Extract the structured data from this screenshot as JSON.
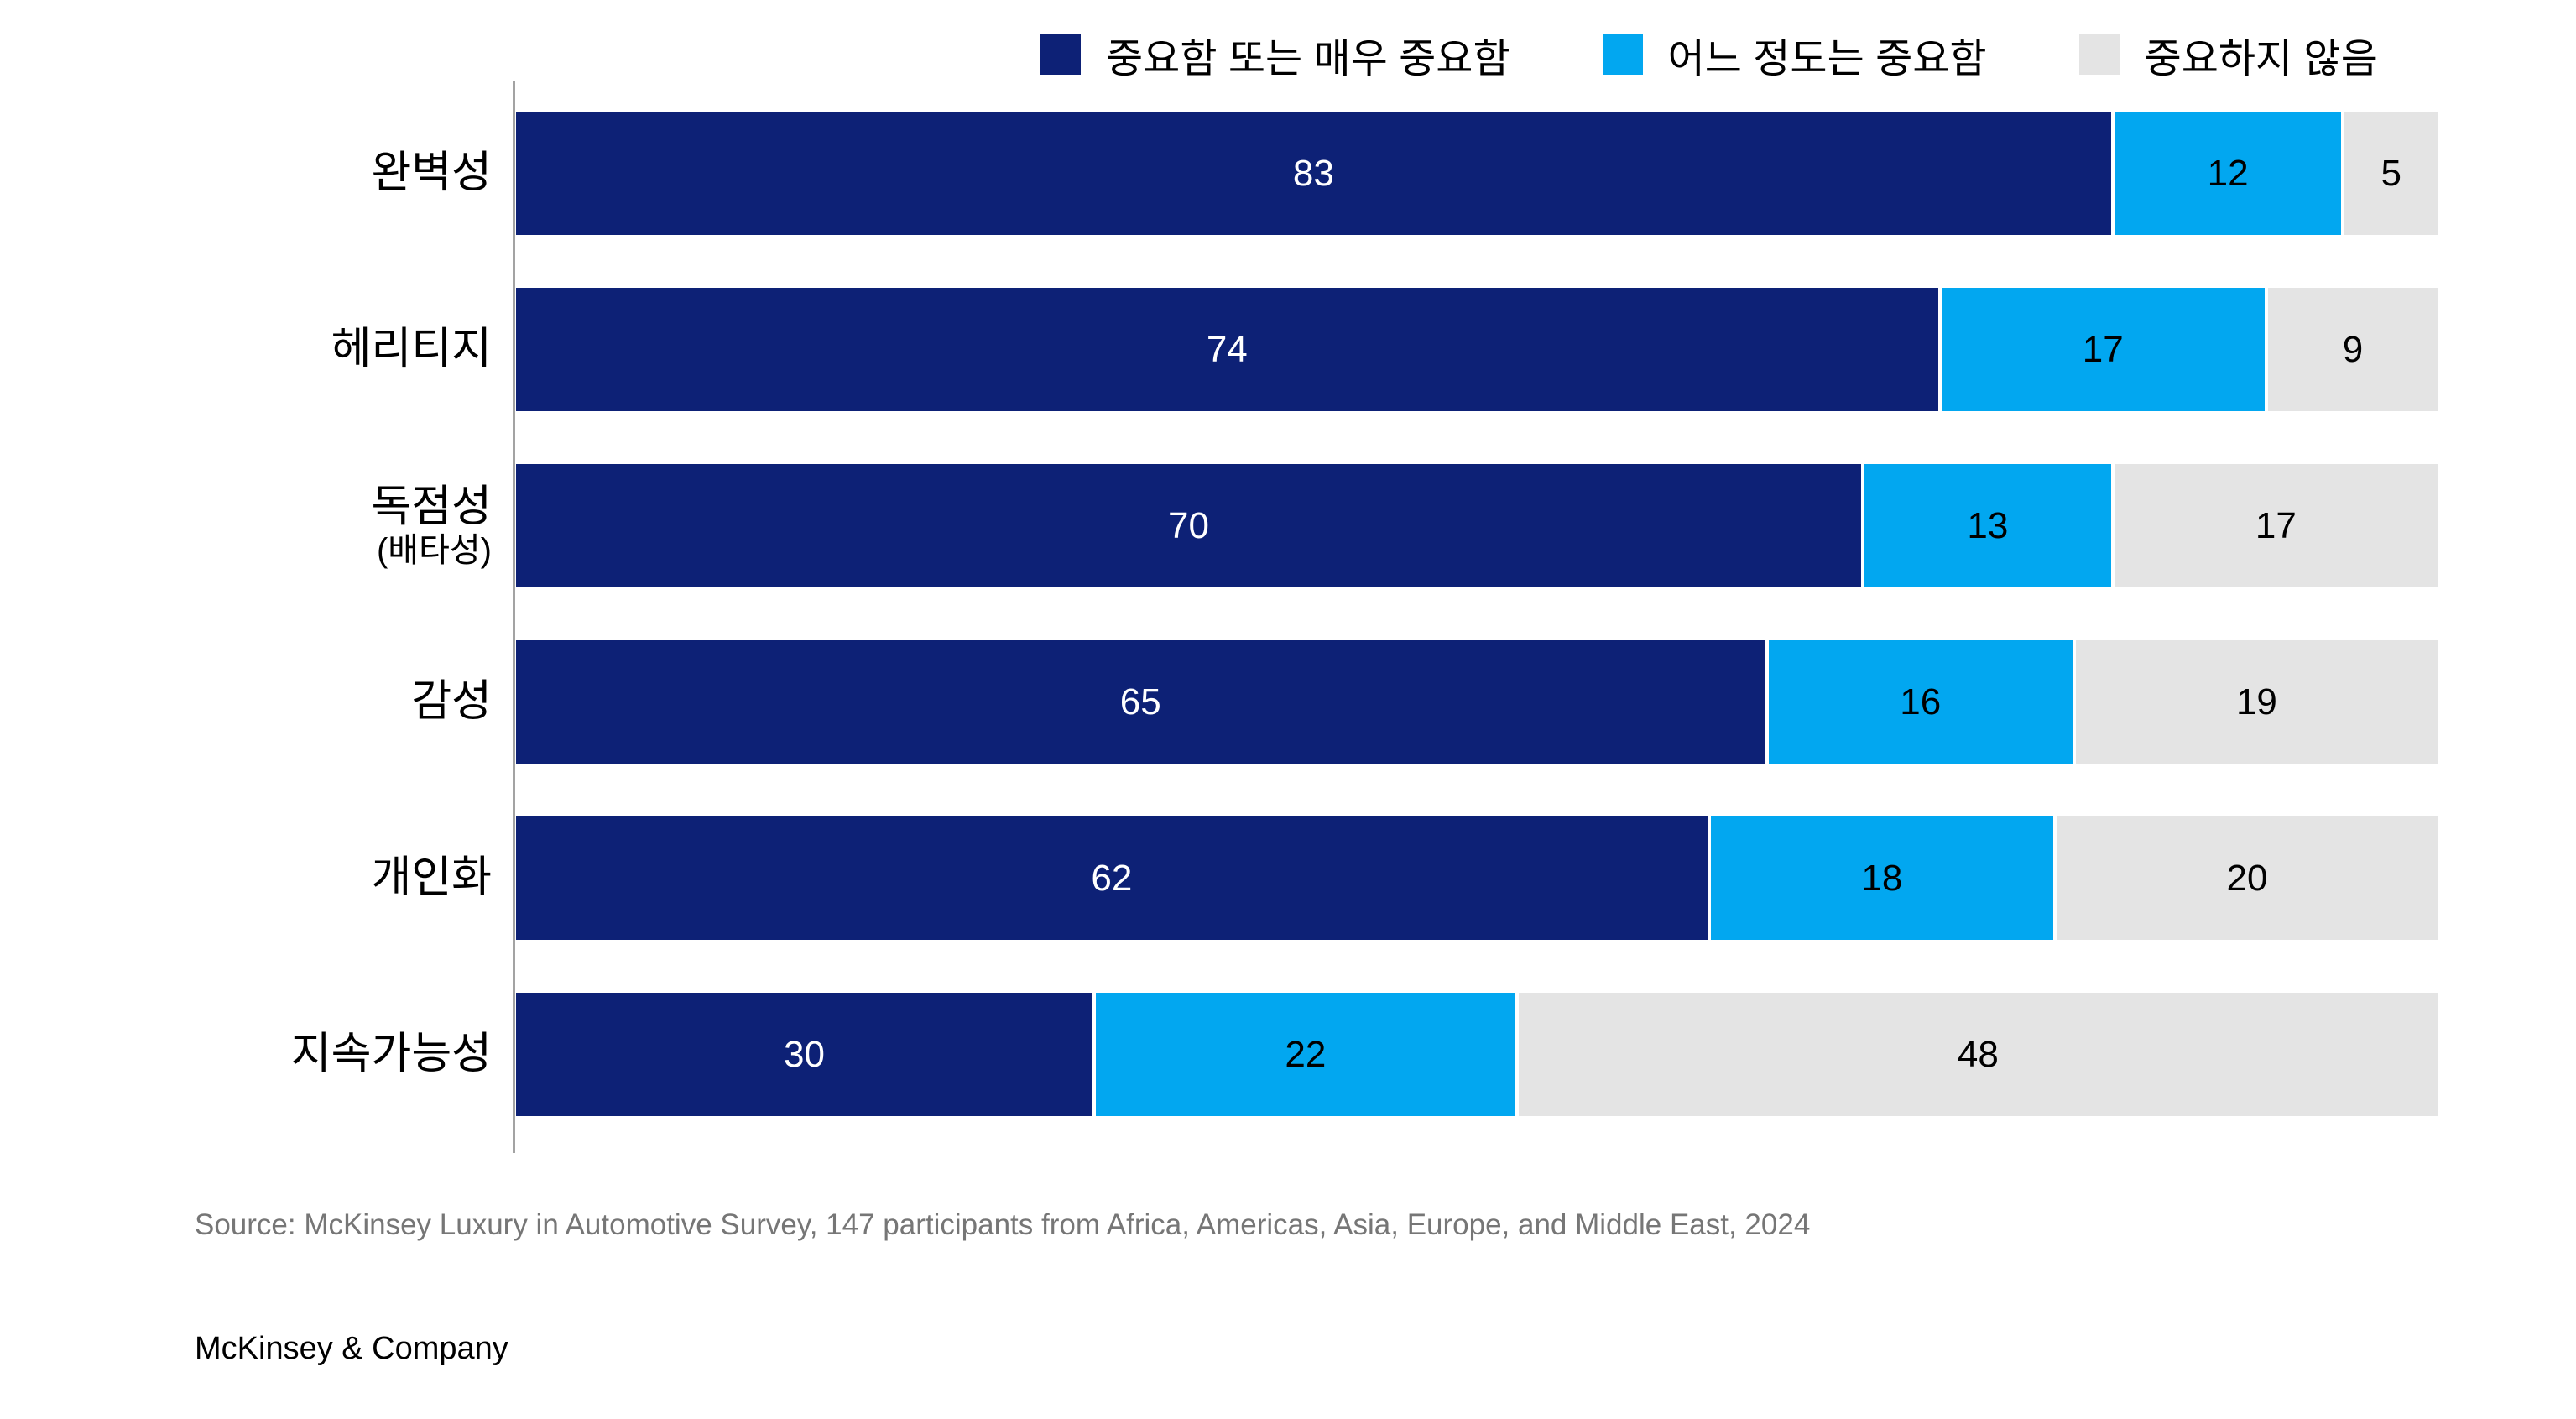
{
  "legend": {
    "items": [
      {
        "label": "중요함 또는 매우 중요함",
        "color": "#0d2176"
      },
      {
        "label": "어느 정도는 중요함",
        "color": "#02a7f0"
      },
      {
        "label": "중요하지 않음",
        "color": "#e4e4e4"
      }
    ]
  },
  "chart_data": {
    "type": "bar",
    "orientation": "horizontal",
    "stacked": true,
    "unit": "%",
    "xlim": [
      0,
      100
    ],
    "grid": false,
    "legend_position": "top",
    "title": "",
    "xlabel": "",
    "ylabel": "",
    "categories": [
      "완벽성",
      "헤리티지",
      "독점성",
      "감성",
      "개인화",
      "지속가능성"
    ],
    "category_sublabels": [
      "",
      "",
      "(배타성)",
      "",
      "",
      ""
    ],
    "series": [
      {
        "name": "중요함 또는 매우 중요함",
        "color": "#0d2176",
        "text_color": "#ffffff",
        "values": [
          83,
          74,
          70,
          65,
          62,
          30
        ]
      },
      {
        "name": "어느 정도는 중요함",
        "color": "#02a7f0",
        "text_color": "#000000",
        "values": [
          12,
          17,
          13,
          16,
          18,
          22
        ]
      },
      {
        "name": "중요하지 않음",
        "color": "#e4e4e4",
        "text_color": "#000000",
        "values": [
          5,
          9,
          17,
          19,
          20,
          48
        ]
      }
    ]
  },
  "source": {
    "text": "Source: McKinsey Luxury in Automotive Survey, 147 participants from Africa, Americas, Asia, Europe, and Middle East, 2024"
  },
  "footer": {
    "brand": "McKinsey & Company"
  }
}
